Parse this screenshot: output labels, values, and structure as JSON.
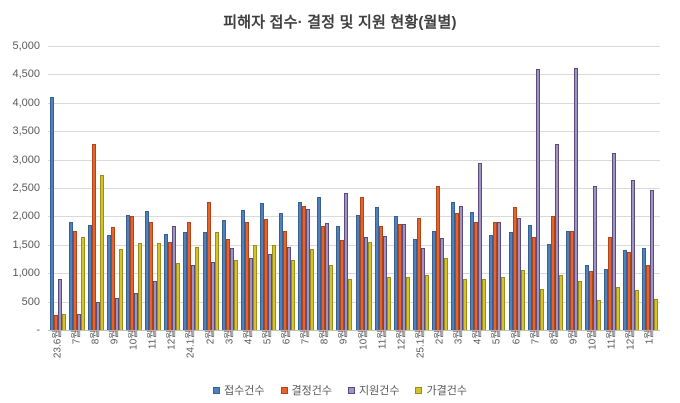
{
  "title": "피해자 접수· 결정 및 지원 현황(월별)",
  "chart_data": {
    "type": "bar",
    "title": "피해자 접수· 결정 및 지원 현황(월별)",
    "xlabel": "",
    "ylabel": "",
    "ylim": [
      0,
      5000
    ],
    "ytick_interval": 500,
    "ytick_labels_top_to_bottom": [
      "5,000",
      "4,500",
      "4,000",
      "3,500",
      "3,000",
      "2,500",
      "2,000",
      "1,500",
      "1,000",
      "500",
      "-"
    ],
    "grid": true,
    "legend_position": "bottom",
    "categories": [
      "23.6월",
      "7월",
      "8월",
      "9월",
      "10월",
      "11월",
      "12월",
      "24.1월",
      "2월",
      "3월",
      "4월",
      "5월",
      "6월",
      "7월",
      "8월",
      "9월",
      "10월",
      "11월",
      "12월",
      "25.1월",
      "2월",
      "3월",
      "4월",
      "5월",
      "6월",
      "7월",
      "8월",
      "9월",
      "10월",
      "11월",
      "12월",
      "1월"
    ],
    "series": [
      {
        "name": "접수건수",
        "color": "#4e81bd",
        "border_color": "#38608f",
        "values": [
          4100,
          1910,
          1850,
          1680,
          2030,
          2090,
          1690,
          1720,
          1720,
          1940,
          2120,
          2240,
          2060,
          2250,
          2350,
          1840,
          2030,
          2160,
          2000,
          1600,
          1750,
          2260,
          2080,
          1680,
          1730,
          1850,
          1520,
          1750,
          1150,
          1080,
          1410,
          1440
        ]
      },
      {
        "name": "결정건수",
        "color": "#e8622e",
        "border_color": "#b04618",
        "values": [
          270,
          1740,
          3280,
          1810,
          2010,
          1910,
          1550,
          1910,
          2260,
          1610,
          1910,
          1960,
          1740,
          2180,
          1830,
          1580,
          2350,
          1830,
          1860,
          1970,
          2530,
          2060,
          1910,
          1900,
          2160,
          1640,
          2010,
          1740,
          1040,
          1630,
          1380,
          1140
        ]
      },
      {
        "name": "지원건수",
        "color": "#a094c2",
        "border_color": "#5c4b7d",
        "values": [
          890,
          280,
          490,
          560,
          650,
          870,
          1840,
          1150,
          1200,
          1440,
          1260,
          1340,
          1460,
          2130,
          1890,
          2410,
          1630,
          1660,
          1860,
          1440,
          1620,
          2190,
          2940,
          1910,
          1970,
          4600,
          3270,
          4620,
          2530,
          3110,
          2640,
          2470
        ]
      },
      {
        "name": "가결건수",
        "color": "#d5c32b",
        "border_color": "#9b8d17",
        "values": [
          290,
          1630,
          2730,
          1430,
          1530,
          1530,
          1180,
          1470,
          1720,
          1240,
          1490,
          1500,
          1230,
          1430,
          1140,
          900,
          1550,
          940,
          930,
          960,
          1260,
          890,
          890,
          930,
          1050,
          730,
          960,
          860,
          520,
          760,
          700,
          550
        ]
      }
    ]
  }
}
